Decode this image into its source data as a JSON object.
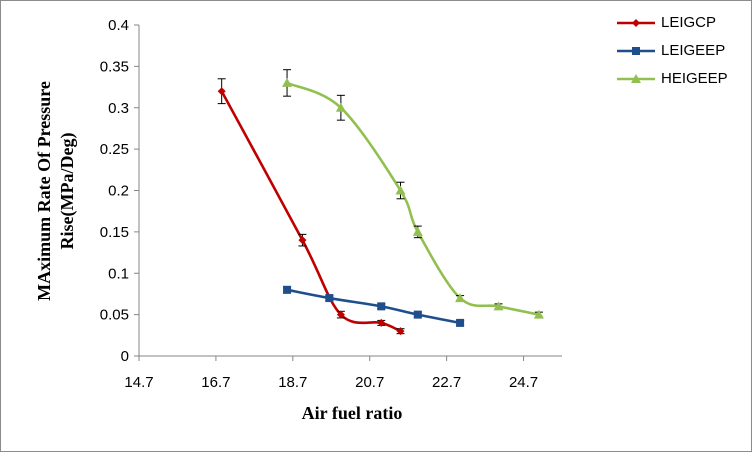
{
  "chart_data": {
    "type": "line",
    "xlabel": "Air fuel ratio",
    "ylabel_lines": [
      "MAximum Rate Of Pressure",
      "Rise(MPa/Deg)"
    ],
    "xlim": [
      14.7,
      25.7
    ],
    "ylim": [
      0,
      0.4
    ],
    "x_ticks": [
      "14.7",
      "16.7",
      "18.7",
      "20.7",
      "22.7",
      "24.7"
    ],
    "y_ticks": [
      "0",
      "0.05",
      "0.1",
      "0.15",
      "0.2",
      "0.25",
      "0.3",
      "0.35",
      "0.4"
    ],
    "grid": false,
    "legend_position": "top-right",
    "series": [
      {
        "name": "LEIGCP",
        "color": "#c00000",
        "marker": "diamond",
        "x": [
          16.85,
          18.95,
          19.95,
          21.0,
          21.5
        ],
        "y": [
          0.32,
          0.14,
          0.05,
          0.04,
          0.03
        ],
        "error": [
          0.015,
          0.007,
          0.004,
          0.003,
          0.003
        ]
      },
      {
        "name": "LEIGEEP",
        "color": "#1f4e8c",
        "marker": "square",
        "x": [
          18.55,
          19.65,
          21.0,
          21.95,
          23.05
        ],
        "y": [
          0.08,
          0.07,
          0.06,
          0.05,
          0.04
        ],
        "error": [
          0.004,
          0.003,
          0.003,
          0.003,
          0.003
        ]
      },
      {
        "name": "HEIGEEP",
        "color": "#92c050",
        "marker": "triangle",
        "x": [
          18.55,
          19.95,
          21.5,
          21.95,
          23.05,
          24.05,
          25.1
        ],
        "y": [
          0.33,
          0.3,
          0.2,
          0.15,
          0.07,
          0.06,
          0.05
        ],
        "error": [
          0.016,
          0.015,
          0.01,
          0.007,
          0.003,
          0.003,
          0.003
        ]
      }
    ]
  }
}
